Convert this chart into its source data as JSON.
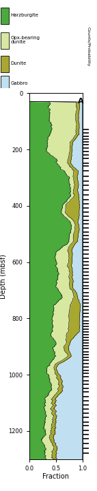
{
  "depth_min": 0,
  "depth_max": 1300,
  "colors": {
    "harzburgite": "#4aaa3c",
    "opx_dunite": "#d8e8a0",
    "dunite": "#a8a830",
    "gabbro": "#c0dff0",
    "background": "white"
  },
  "legend_labels": [
    "Harzburgite",
    "Opx-bearing\ndunite",
    "Dunite",
    "Gabbro"
  ],
  "ylabel": "Depth (mbsf)",
  "xlabel": "Fraction",
  "xticks": [
    0,
    0.5,
    1
  ],
  "yticks": [
    0,
    200,
    400,
    600,
    800,
    1000,
    1200
  ],
  "panel_label": "A",
  "counts_label": "Counts/Probability",
  "carbonate_depths": [
    128,
    140,
    152,
    162,
    172,
    182,
    195,
    208,
    220,
    232,
    248,
    258,
    275,
    295,
    312,
    328,
    345,
    362,
    378,
    392,
    408,
    422,
    438,
    452,
    465,
    478,
    492,
    505,
    518,
    530,
    545,
    558,
    572,
    585,
    598,
    610,
    622,
    635,
    648,
    660,
    672,
    685,
    695,
    708,
    720,
    732,
    745,
    758,
    770,
    782,
    795,
    808,
    818,
    828,
    838,
    848,
    858,
    868,
    878,
    888,
    898,
    908,
    918,
    928,
    938,
    948,
    960,
    972,
    984,
    995,
    1008,
    1022,
    1035,
    1048,
    1062,
    1078,
    1092,
    1108,
    1122,
    1138,
    1152,
    1168,
    1182,
    1198,
    1212,
    1228,
    1245,
    1262,
    1278
  ]
}
